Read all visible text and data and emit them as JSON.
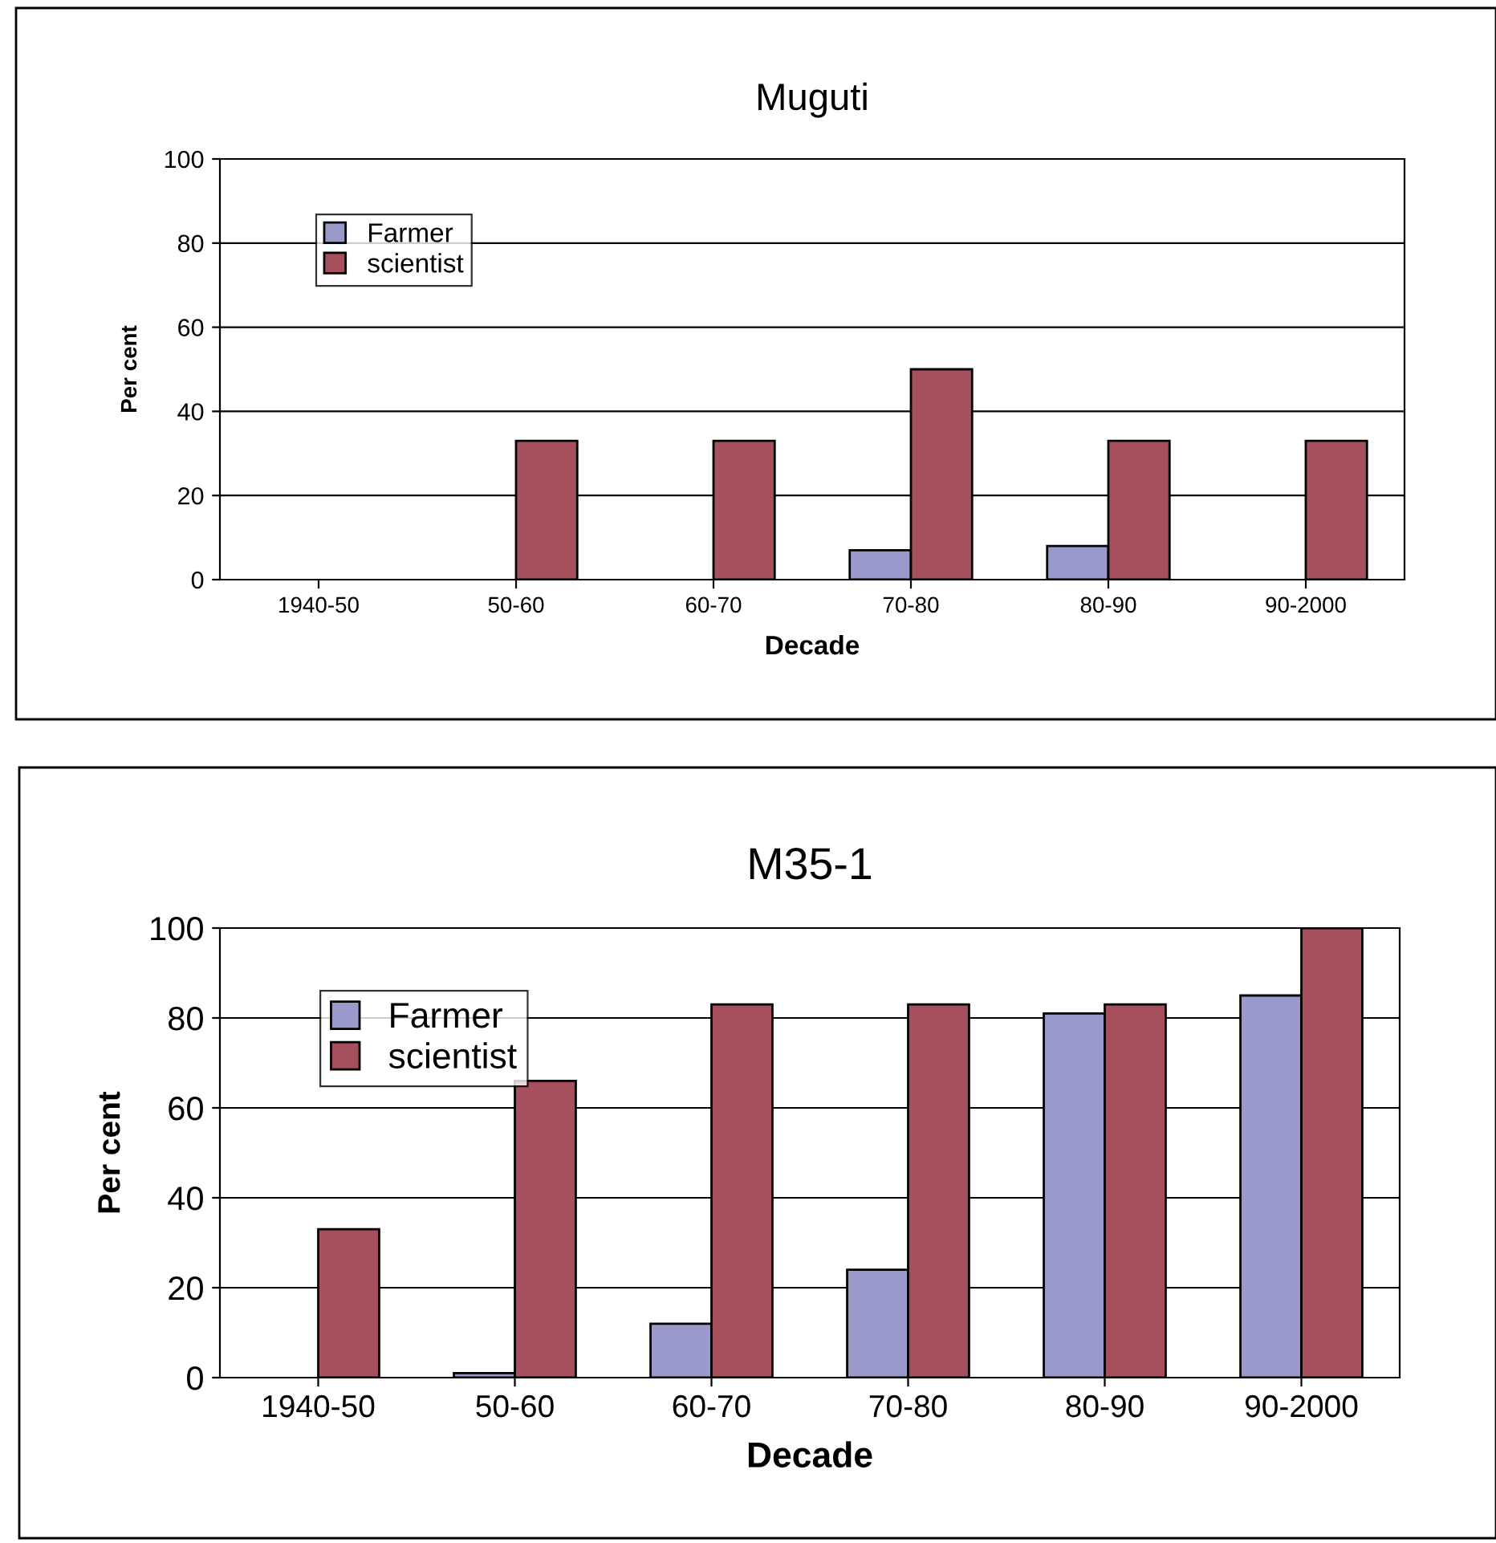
{
  "chart_data": [
    {
      "type": "bar",
      "title": "Muguti",
      "xlabel": "Decade",
      "ylabel": "Per cent",
      "categories": [
        "1940-50",
        "50-60",
        "60-70",
        "70-80",
        "80-90",
        "90-2000"
      ],
      "series": [
        {
          "name": "Farmer",
          "color": "#9999cc",
          "values": [
            0,
            0,
            0,
            7,
            8,
            0
          ]
        },
        {
          "name": "scientist",
          "color": "#a6505e",
          "values": [
            0,
            33,
            33,
            50,
            33,
            33
          ]
        }
      ],
      "ylim": [
        0,
        100
      ],
      "yticks": [
        0,
        20,
        40,
        60,
        80,
        100
      ],
      "grid": "y",
      "legend": "top left"
    },
    {
      "type": "bar",
      "title": "M35-1",
      "xlabel": "Decade",
      "ylabel": "Per cent",
      "categories": [
        "1940-50",
        "50-60",
        "60-70",
        "70-80",
        "80-90",
        "90-2000"
      ],
      "series": [
        {
          "name": "Farmer",
          "color": "#9999cc",
          "values": [
            0,
            1,
            12,
            24,
            81,
            85
          ]
        },
        {
          "name": "scientist",
          "color": "#a6505e",
          "values": [
            33,
            66,
            83,
            83,
            83,
            100
          ]
        }
      ],
      "ylim": [
        0,
        100
      ],
      "yticks": [
        0,
        20,
        40,
        60,
        80,
        100
      ],
      "grid": "y",
      "legend": "top left"
    }
  ]
}
